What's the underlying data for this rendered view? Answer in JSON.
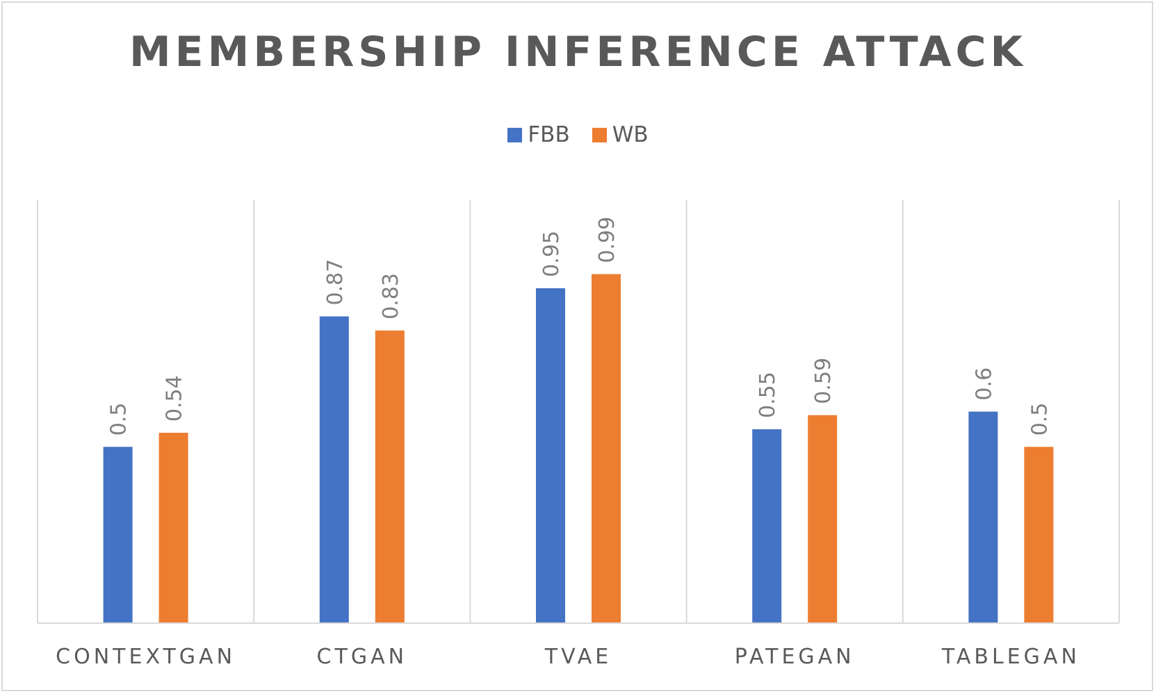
{
  "chart_data": {
    "type": "bar",
    "title": "MEMBERSHIP INFERENCE ATTACK",
    "categories": [
      "CONTEXTGAN",
      "CTGAN",
      "TVAE",
      "PATEGAN",
      "TABLEGAN"
    ],
    "series": [
      {
        "name": "FBB",
        "color": "#4472c4",
        "values": [
          0.5,
          0.87,
          0.95,
          0.55,
          0.6
        ]
      },
      {
        "name": "WB",
        "color": "#ed7d31",
        "values": [
          0.54,
          0.83,
          0.99,
          0.59,
          0.5
        ]
      }
    ],
    "data_labels": [
      [
        "0.5",
        "0.87",
        "0.95",
        "0.55",
        "0.6"
      ],
      [
        "0.54",
        "0.83",
        "0.99",
        "0.59",
        "0.5"
      ]
    ],
    "ylim": [
      0,
      1.2
    ],
    "legend_position": "top",
    "grid": "vertical category separators",
    "data_label_orientation": "rotated vertical"
  }
}
